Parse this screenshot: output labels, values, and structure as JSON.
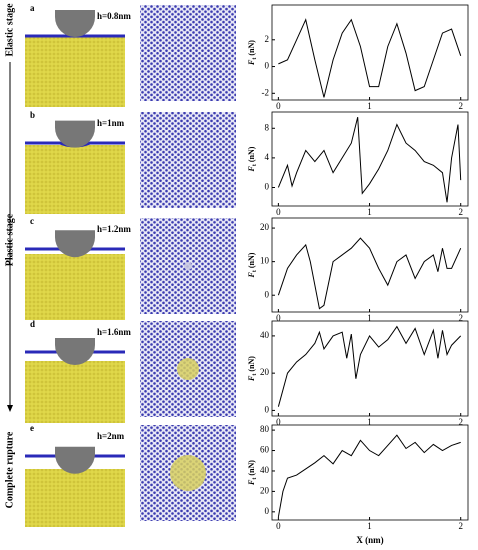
{
  "stages": [
    "Elastic stage",
    "Plastic stage",
    "Complete rupture"
  ],
  "panels": [
    {
      "letter": "a",
      "depth": "h=0.8nm"
    },
    {
      "letter": "b",
      "depth": "h=1nm"
    },
    {
      "letter": "c",
      "depth": "h=1.2nm"
    },
    {
      "letter": "d",
      "depth": "h=1.6nm"
    },
    {
      "letter": "e",
      "depth": "h=2nm"
    }
  ],
  "chart_data": [
    {
      "type": "line",
      "y_label_symbol": "F",
      "y_label_subscript": "t",
      "y_label_unit": "(nN)",
      "xlim": [
        -0.07,
        2.08
      ],
      "xticks": [
        0,
        1,
        2
      ],
      "ylim": [
        -2.5,
        4.6
      ],
      "yticks": [
        -2,
        0,
        2
      ],
      "series": [
        {
          "color": "#000000",
          "x": [
            0,
            0.1,
            0.2,
            0.3,
            0.4,
            0.5,
            0.6,
            0.7,
            0.8,
            0.9,
            1.0,
            1.1,
            1.2,
            1.3,
            1.4,
            1.5,
            1.6,
            1.7,
            1.8,
            1.9,
            2.0
          ],
          "values": [
            0.2,
            0.5,
            2.0,
            3.5,
            0.5,
            -2.3,
            0.5,
            2.5,
            3.5,
            1.5,
            -1.5,
            -1.5,
            1.5,
            3.2,
            1.0,
            -1.8,
            -1.5,
            0.5,
            2.5,
            2.8,
            0.8
          ]
        }
      ]
    },
    {
      "type": "line",
      "y_label_symbol": "F",
      "y_label_subscript": "t",
      "y_label_unit": "(nN)",
      "xlim": [
        -0.07,
        2.08
      ],
      "xticks": [
        0,
        1,
        2
      ],
      "ylim": [
        -2.5,
        10.2
      ],
      "yticks": [
        0,
        4,
        8
      ],
      "series": [
        {
          "color": "#000000",
          "x": [
            0,
            0.1,
            0.15,
            0.2,
            0.3,
            0.4,
            0.5,
            0.6,
            0.7,
            0.8,
            0.87,
            0.92,
            1.0,
            1.1,
            1.2,
            1.3,
            1.4,
            1.5,
            1.6,
            1.7,
            1.8,
            1.85,
            1.9,
            1.97,
            2.0
          ],
          "values": [
            0,
            3,
            0.2,
            2,
            5,
            3.5,
            5,
            2,
            4,
            6,
            9.5,
            -0.8,
            0.5,
            2.5,
            5,
            8.5,
            6,
            5,
            3.5,
            3,
            2,
            -2,
            4,
            8.5,
            1
          ]
        }
      ]
    },
    {
      "type": "line",
      "y_label_symbol": "F",
      "y_label_subscript": "t",
      "y_label_unit": "(nN)",
      "xlim": [
        -0.07,
        2.08
      ],
      "xticks": [
        0,
        1,
        2
      ],
      "ylim": [
        -5,
        23
      ],
      "yticks": [
        0,
        10,
        20
      ],
      "series": [
        {
          "color": "#000000",
          "x": [
            0,
            0.1,
            0.2,
            0.3,
            0.35,
            0.45,
            0.5,
            0.6,
            0.7,
            0.8,
            0.9,
            1.0,
            1.1,
            1.2,
            1.3,
            1.4,
            1.5,
            1.6,
            1.7,
            1.75,
            1.8,
            1.85,
            1.9,
            2.0
          ],
          "values": [
            0,
            8,
            12,
            15,
            10,
            -4,
            -3,
            10,
            12,
            14,
            17,
            14,
            8,
            3,
            10,
            12,
            5,
            10,
            12,
            7,
            14,
            8,
            8,
            14
          ]
        }
      ]
    },
    {
      "type": "line",
      "y_label_symbol": "F",
      "y_label_subscript": "t",
      "y_label_unit": "(nN)",
      "xlim": [
        -0.07,
        2.08
      ],
      "xticks": [
        0,
        1,
        2
      ],
      "ylim": [
        -3,
        48
      ],
      "yticks": [
        0,
        20,
        40
      ],
      "series": [
        {
          "color": "#000000",
          "x": [
            0,
            0.1,
            0.2,
            0.3,
            0.4,
            0.45,
            0.5,
            0.6,
            0.7,
            0.75,
            0.8,
            0.85,
            0.9,
            1.0,
            1.1,
            1.2,
            1.3,
            1.4,
            1.5,
            1.6,
            1.7,
            1.75,
            1.8,
            1.85,
            1.9,
            2.0
          ],
          "values": [
            2,
            20,
            26,
            30,
            36,
            42,
            33,
            40,
            42,
            28,
            41,
            17,
            30,
            40,
            34,
            38,
            45,
            36,
            44,
            30,
            43,
            28,
            43,
            30,
            35,
            40
          ]
        }
      ]
    },
    {
      "type": "line",
      "y_label_symbol": "F",
      "y_label_subscript": "t",
      "y_label_unit": "(nN)",
      "x_label": "X (nm)",
      "xlim": [
        -0.07,
        2.08
      ],
      "xticks": [
        0,
        1,
        2
      ],
      "ylim": [
        -8,
        85
      ],
      "yticks": [
        0,
        20,
        40,
        60,
        80
      ],
      "series": [
        {
          "color": "#000000",
          "x": [
            0,
            0.05,
            0.1,
            0.2,
            0.3,
            0.4,
            0.5,
            0.6,
            0.7,
            0.8,
            0.9,
            1.0,
            1.1,
            1.2,
            1.3,
            1.4,
            1.5,
            1.6,
            1.7,
            1.8,
            1.9,
            2.0
          ],
          "values": [
            -5,
            20,
            33,
            36,
            42,
            48,
            55,
            47,
            60,
            55,
            70,
            60,
            55,
            65,
            75,
            62,
            68,
            58,
            66,
            60,
            65,
            68
          ]
        }
      ]
    }
  ]
}
